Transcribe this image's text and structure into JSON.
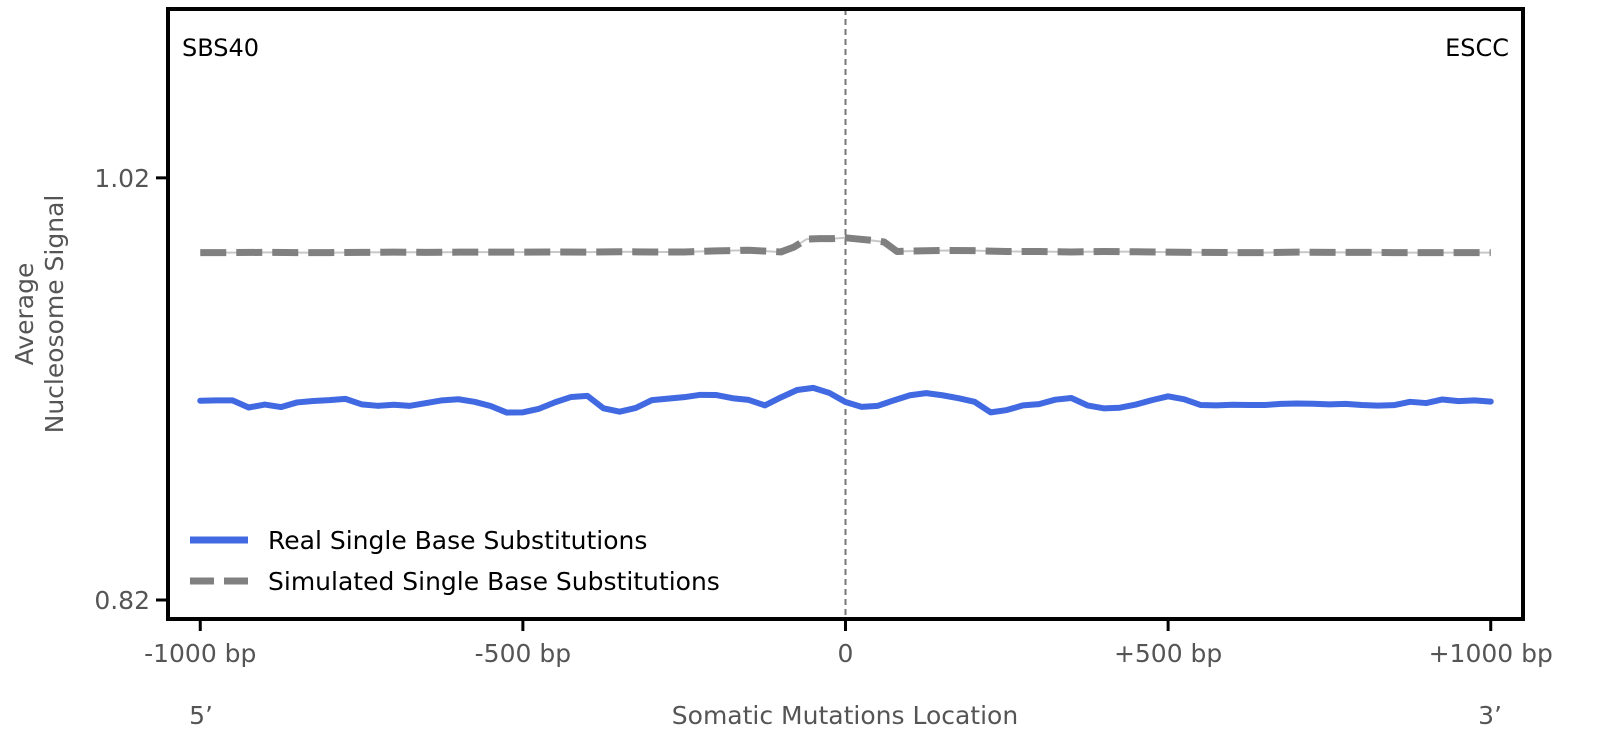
{
  "chart_data": {
    "type": "line",
    "top_left_label": "SBS40",
    "top_right_label": "ESCC",
    "xlabel": "Somatic Mutations Location",
    "ylabel_lines": [
      "Average",
      "Nucleosome Signal"
    ],
    "x_end_labels": {
      "left": "5’",
      "right": "3’"
    },
    "xlim": [
      -1050,
      1050
    ],
    "ylim": [
      0.811,
      1.1
    ],
    "x_ticks": [
      {
        "value": -1000,
        "label": "-1000 bp"
      },
      {
        "value": -500,
        "label": "-500 bp"
      },
      {
        "value": 0,
        "label": "0"
      },
      {
        "value": 500,
        "label": "+500 bp"
      },
      {
        "value": 1000,
        "label": "+1000 bp"
      }
    ],
    "y_ticks": [
      {
        "value": 1.02,
        "label": "1.02"
      },
      {
        "value": 0.82,
        "label": "0.82"
      }
    ],
    "vline_x": 0,
    "legend_position": "lower-left",
    "series": [
      {
        "name": "Real Single Base Substitutions",
        "color": "#4169e1",
        "style": "solid",
        "x": [
          -1000,
          -975,
          -950,
          -925,
          -900,
          -875,
          -850,
          -825,
          -800,
          -775,
          -750,
          -725,
          -700,
          -675,
          -650,
          -625,
          -600,
          -575,
          -550,
          -525,
          -500,
          -475,
          -450,
          -425,
          -400,
          -375,
          -350,
          -325,
          -300,
          -275,
          -250,
          -225,
          -200,
          -175,
          -150,
          -125,
          -100,
          -75,
          -50,
          -25,
          0,
          25,
          50,
          75,
          100,
          125,
          150,
          175,
          200,
          225,
          250,
          275,
          300,
          325,
          350,
          375,
          400,
          425,
          450,
          475,
          500,
          525,
          550,
          575,
          600,
          625,
          650,
          675,
          700,
          725,
          750,
          775,
          800,
          825,
          850,
          875,
          900,
          925,
          950,
          975,
          1000
        ],
        "y": [
          0.9144,
          0.9146,
          0.9146,
          0.9112,
          0.9126,
          0.9114,
          0.9136,
          0.9143,
          0.9147,
          0.9153,
          0.9127,
          0.912,
          0.9125,
          0.912,
          0.9133,
          0.9146,
          0.9151,
          0.9139,
          0.9119,
          0.9088,
          0.9089,
          0.9106,
          0.9137,
          0.9162,
          0.9167,
          0.9108,
          0.9092,
          0.911,
          0.9147,
          0.9154,
          0.9161,
          0.9172,
          0.9171,
          0.9156,
          0.9148,
          0.9122,
          0.916,
          0.9195,
          0.9205,
          0.9181,
          0.9138,
          0.9115,
          0.912,
          0.9146,
          0.917,
          0.918,
          0.917,
          0.9156,
          0.9139,
          0.9089,
          0.91,
          0.9122,
          0.9128,
          0.9149,
          0.9157,
          0.9122,
          0.9108,
          0.9111,
          0.9126,
          0.9147,
          0.9165,
          0.9151,
          0.9124,
          0.9122,
          0.9125,
          0.9124,
          0.9124,
          0.9129,
          0.9131,
          0.913,
          0.9127,
          0.9129,
          0.9124,
          0.9121,
          0.9123,
          0.9139,
          0.9133,
          0.915,
          0.9142,
          0.9146,
          0.914
        ]
      },
      {
        "name": "Simulated Single Base Substitutions",
        "color": "#808080",
        "style": "dashed",
        "x": [
          -1000,
          -950,
          -900,
          -850,
          -800,
          -750,
          -700,
          -650,
          -600,
          -550,
          -500,
          -450,
          -400,
          -350,
          -300,
          -250,
          -200,
          -150,
          -100,
          -80,
          -60,
          -40,
          -20,
          0,
          20,
          40,
          60,
          80,
          100,
          150,
          200,
          250,
          300,
          350,
          400,
          450,
          500,
          550,
          600,
          650,
          700,
          750,
          800,
          850,
          900,
          950,
          1000
        ],
        "y": [
          0.9846,
          0.9846,
          0.9847,
          0.9846,
          0.9846,
          0.9847,
          0.9848,
          0.9847,
          0.9848,
          0.9848,
          0.9848,
          0.9849,
          0.9848,
          0.985,
          0.9849,
          0.9849,
          0.9854,
          0.9857,
          0.9849,
          0.9872,
          0.991,
          0.9912,
          0.9912,
          0.9916,
          0.991,
          0.9904,
          0.9896,
          0.9851,
          0.9853,
          0.9856,
          0.9855,
          0.9851,
          0.9851,
          0.9849,
          0.9851,
          0.985,
          0.9848,
          0.9847,
          0.9846,
          0.9846,
          0.9848,
          0.9847,
          0.9847,
          0.9846,
          0.9846,
          0.9846,
          0.9846
        ]
      }
    ]
  }
}
